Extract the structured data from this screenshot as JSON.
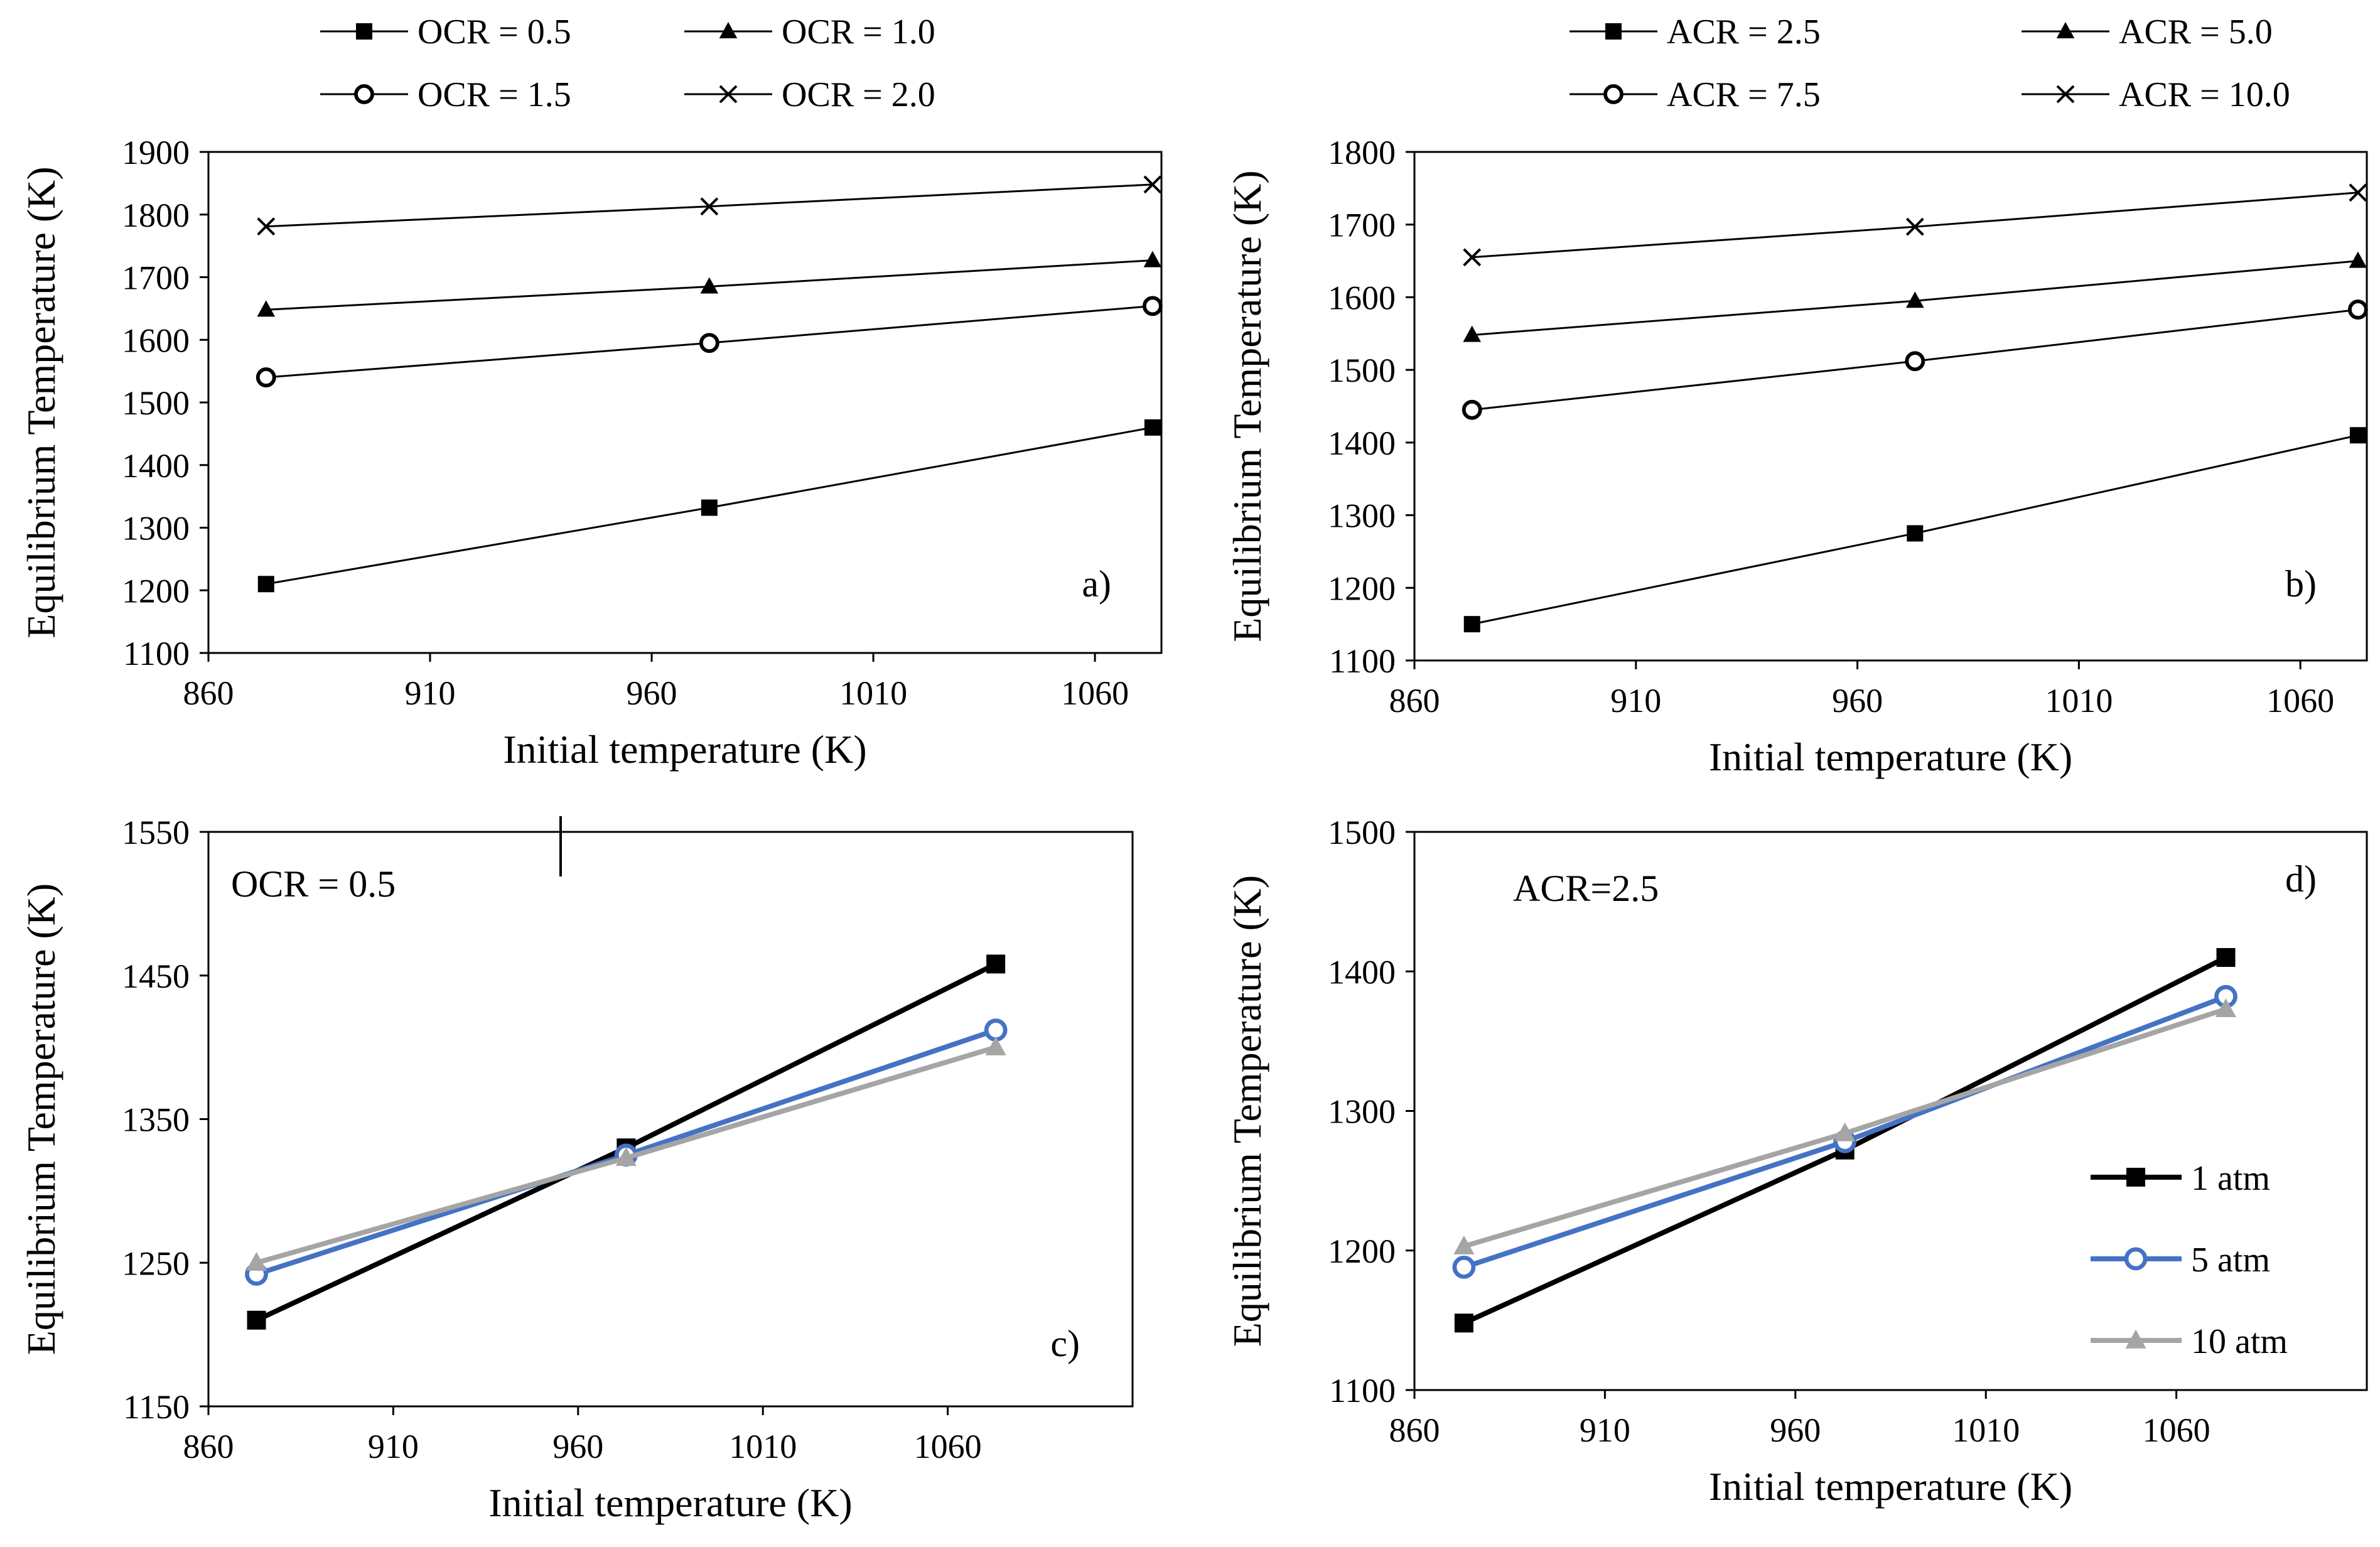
{
  "colors": {
    "black": "#000000",
    "blue": "#4472C4",
    "gray": "#A5A5A5"
  },
  "chart_data": [
    {
      "id": "a",
      "type": "line",
      "panel_label": "a)",
      "xlabel": "Initial temperature (K)",
      "ylabel": "Equilibrium  Temperature (K)",
      "xlim": [
        860,
        1075
      ],
      "ylim": [
        1100,
        1900
      ],
      "xticks": [
        "860",
        "910",
        "960",
        "1010",
        "1060"
      ],
      "yticks": [
        "1100",
        "1200",
        "1300",
        "1400",
        "1500",
        "1600",
        "1700",
        "1800",
        "1900"
      ],
      "grid": false,
      "legend_position": "top",
      "x": [
        873,
        973,
        1073
      ],
      "series": [
        {
          "name": "OCR = 0.5",
          "marker": "square",
          "color": "#000000",
          "values": [
            1210,
            1332,
            1460
          ]
        },
        {
          "name": "OCR = 1.0",
          "marker": "triangle",
          "color": "#000000",
          "values": [
            1648,
            1685,
            1727
          ]
        },
        {
          "name": "OCR = 1.5",
          "marker": "circle-open",
          "color": "#000000",
          "values": [
            1540,
            1595,
            1654
          ]
        },
        {
          "name": "OCR = 2.0",
          "marker": "cross",
          "color": "#000000",
          "values": [
            1781,
            1813,
            1848
          ]
        }
      ]
    },
    {
      "id": "b",
      "type": "line",
      "panel_label": "b)",
      "xlabel": "Initial temperature (K)",
      "ylabel": "Equilibrium  Temperature (K)",
      "xlim": [
        860,
        1075
      ],
      "ylim": [
        1100,
        1800
      ],
      "xticks": [
        "860",
        "910",
        "960",
        "1010",
        "1060"
      ],
      "yticks": [
        "1100",
        "1200",
        "1300",
        "1400",
        "1500",
        "1600",
        "1700",
        "1800"
      ],
      "grid": false,
      "legend_position": "top",
      "x": [
        873,
        973,
        1073
      ],
      "series": [
        {
          "name": "ACR = 2.5",
          "marker": "square",
          "color": "#000000",
          "values": [
            1150,
            1275,
            1410
          ]
        },
        {
          "name": "ACR = 5.0",
          "marker": "triangle",
          "color": "#000000",
          "values": [
            1548,
            1595,
            1650
          ]
        },
        {
          "name": "ACR = 7.5",
          "marker": "circle-open",
          "color": "#000000",
          "values": [
            1445,
            1512,
            1583
          ]
        },
        {
          "name": "ACR = 10.0",
          "marker": "cross",
          "color": "#000000",
          "values": [
            1655,
            1697,
            1744
          ]
        }
      ]
    },
    {
      "id": "c",
      "type": "line",
      "panel_label": "c)",
      "annotation": "OCR = 0.5",
      "xlabel": "Initial temperature (K)",
      "ylabel": "Equilibrium  Temperature (K)",
      "xlim": [
        860,
        1110
      ],
      "ylim": [
        1150,
        1550
      ],
      "xticks": [
        "860",
        "910",
        "960",
        "1010",
        "1060"
      ],
      "yticks": [
        "1150",
        "1250",
        "1350",
        "1450",
        "1550"
      ],
      "grid": false,
      "x": [
        873,
        973,
        1073
      ],
      "series": [
        {
          "name": "1 atm",
          "marker": "square",
          "color": "#000000",
          "values": [
            1210,
            1330,
            1458
          ]
        },
        {
          "name": "5 atm",
          "marker": "circle-open",
          "color": "#4472C4",
          "values": [
            1242,
            1325,
            1412
          ]
        },
        {
          "name": "10 atm",
          "marker": "triangle",
          "color": "#A5A5A5",
          "values": [
            1250,
            1323,
            1400
          ]
        }
      ]
    },
    {
      "id": "d",
      "type": "line",
      "panel_label": "d)",
      "annotation": "ACR=2.5",
      "xlabel": "Initial temperature (K)",
      "ylabel": "Equilibrium  Temperature (K)",
      "xlim": [
        860,
        1110
      ],
      "ylim": [
        1100,
        1500
      ],
      "xticks": [
        "860",
        "910",
        "960",
        "1010",
        "1060"
      ],
      "yticks": [
        "1100",
        "1200",
        "1300",
        "1400",
        "1500"
      ],
      "grid": false,
      "legend_position": "bottom-right",
      "x": [
        873,
        973,
        1073
      ],
      "series": [
        {
          "name": "1 atm",
          "marker": "square",
          "color": "#000000",
          "values": [
            1148,
            1272,
            1410
          ]
        },
        {
          "name": "5 atm",
          "marker": "circle-open",
          "color": "#4472C4",
          "values": [
            1188,
            1278,
            1382
          ]
        },
        {
          "name": "10 atm",
          "marker": "triangle",
          "color": "#A5A5A5",
          "values": [
            1203,
            1284,
            1373
          ]
        }
      ]
    }
  ]
}
